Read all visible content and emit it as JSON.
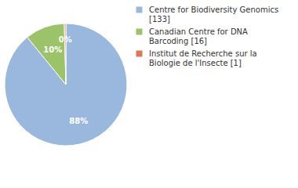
{
  "chart_data": {
    "type": "pie",
    "categories": [
      "Centre for Biodiversity Genomics [133]",
      "Canadian Centre for DNA Barcoding [16]",
      "Institut de Recherche sur la Biologie de l'Insecte [1]"
    ],
    "values": [
      88.4,
      10.4,
      0.4
    ],
    "value_labels": [
      "88%",
      "10%",
      "0%"
    ],
    "colors": [
      "#9ab8de",
      "#9cc36a",
      "#e07656"
    ],
    "data_labels": true,
    "legend": "right"
  }
}
